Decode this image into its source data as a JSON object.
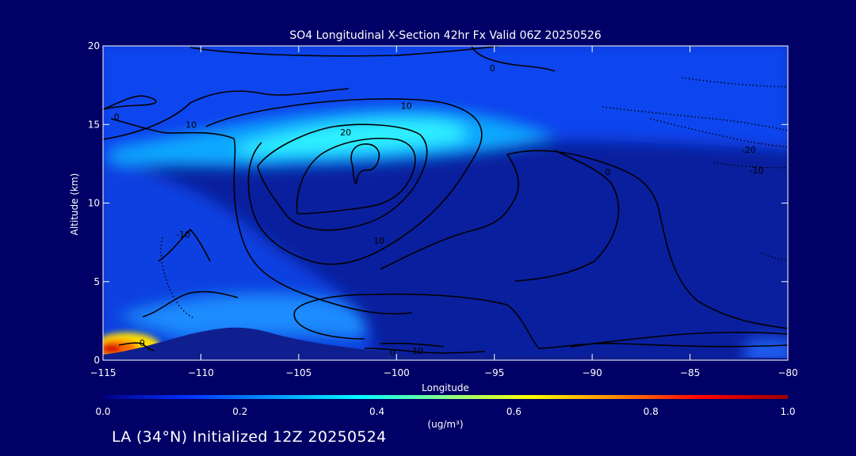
{
  "chart_data": {
    "type": "heatmap",
    "title": "SO4 Longitudinal X-Section 42hr  Fx Valid 06Z 20250526",
    "xlabel": "Longitude",
    "ylabel": "Altitude (km)",
    "xlim": [
      -115,
      -80
    ],
    "ylim": [
      0,
      20
    ],
    "x_ticks": [
      -115,
      -110,
      -105,
      -100,
      -95,
      -90,
      -85,
      -80
    ],
    "x_tick_labels": [
      "−115",
      "−110",
      "−105",
      "−100",
      "−95",
      "−90",
      "−85",
      "−80"
    ],
    "y_ticks": [
      0,
      5,
      10,
      15,
      20
    ],
    "y_tick_labels": [
      "0",
      "5",
      "10",
      "15",
      "20"
    ],
    "colorbar": {
      "label": "(ug/m³)",
      "range": [
        0.0,
        1.0
      ],
      "ticks": [
        "0.0",
        "0.2",
        "0.4",
        "0.6",
        "0.8",
        "1.0"
      ],
      "colormap": [
        "#000088",
        "#0033ff",
        "#0099ff",
        "#00ffff",
        "#88ff88",
        "#ffff00",
        "#ff8800",
        "#ff0000",
        "#990000"
      ]
    },
    "contour_labels": [
      {
        "text": "0",
        "x": -114.3,
        "y": 15.5
      },
      {
        "text": "10",
        "x": -110.5,
        "y": 15.0
      },
      {
        "text": "10",
        "x": -99.5,
        "y": 16.2
      },
      {
        "text": "20",
        "x": -102.6,
        "y": 14.5
      },
      {
        "text": "0",
        "x": -95.1,
        "y": 18.6
      },
      {
        "text": "-10",
        "x": -110.9,
        "y": 8.0
      },
      {
        "text": "10",
        "x": -100.9,
        "y": 7.6
      },
      {
        "text": "0",
        "x": -113.0,
        "y": 1.1
      },
      {
        "text": "0",
        "x": -89.2,
        "y": 12.0
      },
      {
        "text": "-20",
        "x": -82.0,
        "y": 13.4
      },
      {
        "text": "-10",
        "x": -81.6,
        "y": 12.1
      },
      {
        "text": "-10",
        "x": -99.0,
        "y": 0.6
      },
      {
        "text": "0",
        "x": -100.2,
        "y": 0.5
      }
    ]
  },
  "footer": "LA (34°N) Initialized 12Z 20250524"
}
